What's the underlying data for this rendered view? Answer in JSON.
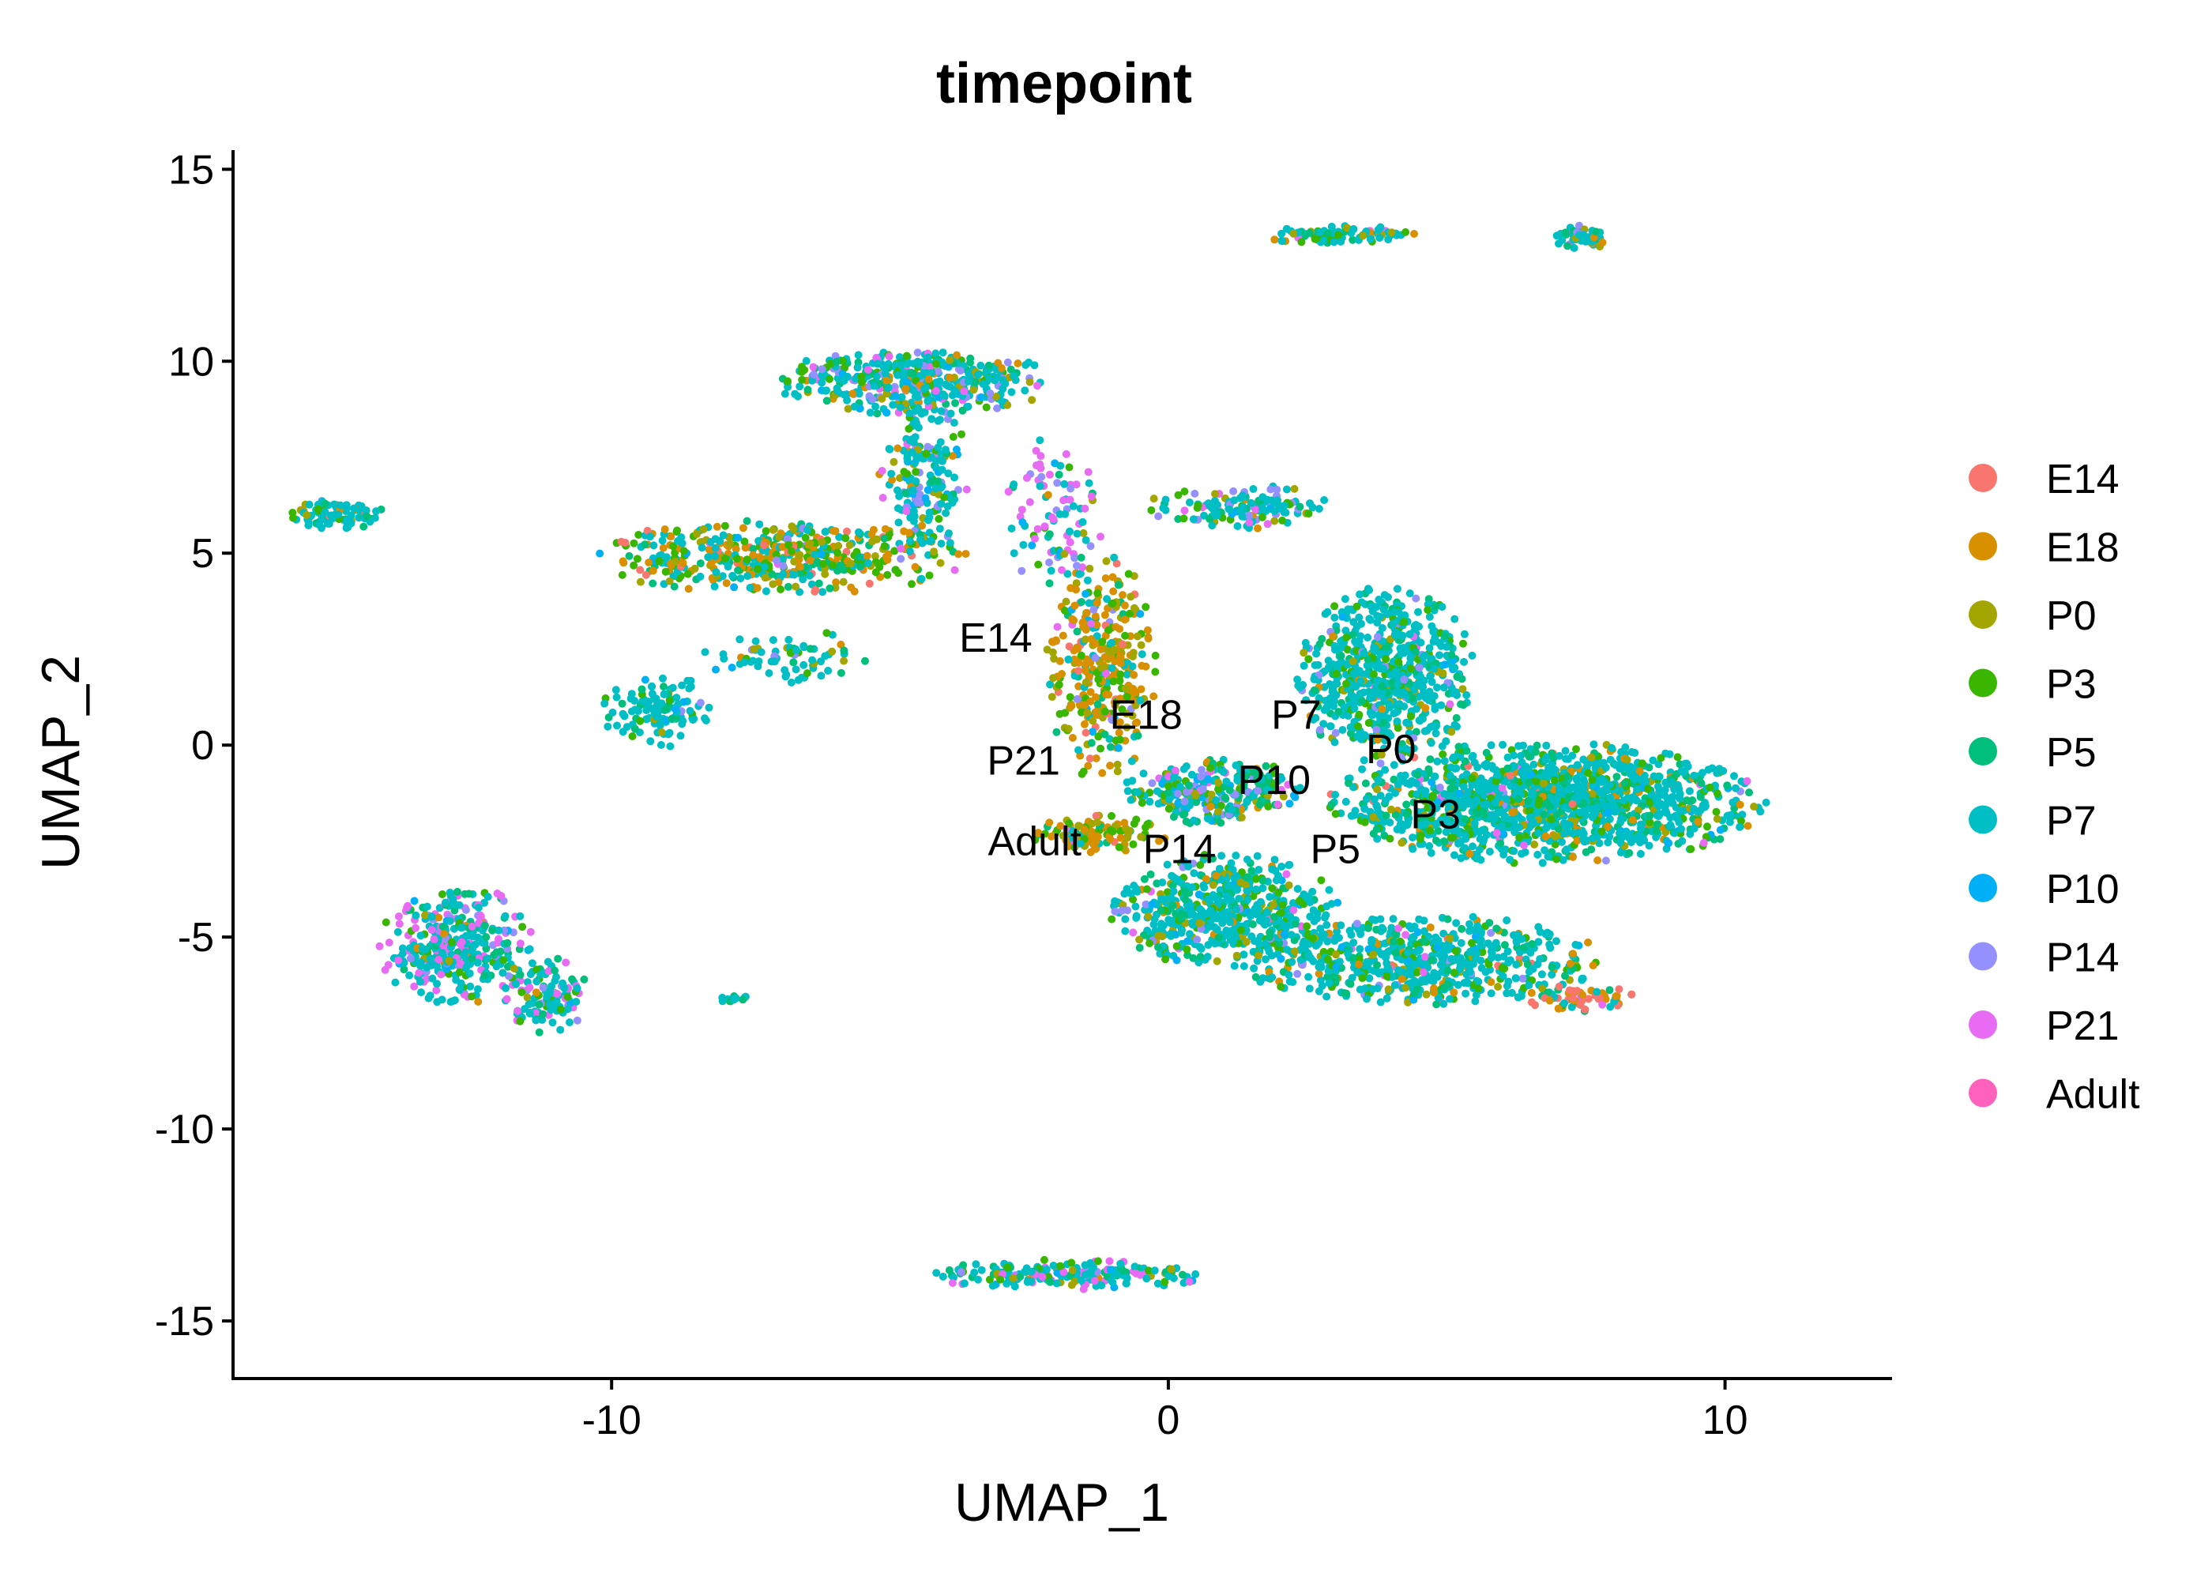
{
  "chart_data": {
    "type": "scatter",
    "title": "timepoint",
    "xlabel": "UMAP_1",
    "ylabel": "UMAP_2",
    "xlim": [
      -16.8,
      13
    ],
    "ylim": [
      -16.5,
      15.5
    ],
    "xticks": [
      -10,
      0,
      10
    ],
    "xtick_labels": [
      "-10",
      "0",
      "10"
    ],
    "yticks": [
      -15,
      -10,
      -5,
      0,
      5,
      10,
      15
    ],
    "ytick_labels": [
      "-15",
      "-10",
      "-5",
      "0",
      "5",
      "10",
      "15"
    ],
    "grid": false,
    "legend_position": "right",
    "series": [
      {
        "name": "E14",
        "color": "#F8766D"
      },
      {
        "name": "E18",
        "color": "#D89000"
      },
      {
        "name": "P0",
        "color": "#A3A500"
      },
      {
        "name": "P3",
        "color": "#39B600"
      },
      {
        "name": "P5",
        "color": "#00BF7D"
      },
      {
        "name": "P7",
        "color": "#00BFC4"
      },
      {
        "name": "P10",
        "color": "#00B0F6"
      },
      {
        "name": "P14",
        "color": "#9590FF"
      },
      {
        "name": "P21",
        "color": "#E76BF3"
      },
      {
        "name": "Adult",
        "color": "#FF62BC"
      }
    ],
    "cluster_labels": [
      {
        "text": "E14",
        "x": -3.1,
        "y": 2.8
      },
      {
        "text": "E18",
        "x": -0.4,
        "y": 0.8
      },
      {
        "text": "P7",
        "x": 2.3,
        "y": 0.8
      },
      {
        "text": "P0",
        "x": 4.0,
        "y": -0.1
      },
      {
        "text": "P21",
        "x": -2.6,
        "y": -0.4
      },
      {
        "text": "P10",
        "x": 1.9,
        "y": -0.9
      },
      {
        "text": "P3",
        "x": 4.8,
        "y": -1.8
      },
      {
        "text": "Adult",
        "x": -2.4,
        "y": -2.5
      },
      {
        "text": "P14",
        "x": 0.2,
        "y": -2.7
      },
      {
        "text": "P5",
        "x": 3.0,
        "y": -2.7
      }
    ],
    "clusters": [
      {
        "cx": -14.9,
        "cy": 6.0,
        "rx": 0.9,
        "ry": 0.4,
        "w": 0.4,
        "mix": [
          0.05,
          0.05,
          0.05,
          0.1,
          0.15,
          0.5,
          0.05,
          0.05,
          0.0,
          0.0
        ]
      },
      {
        "cx": -7.0,
        "cy": 4.9,
        "rx": 3.4,
        "ry": 1.0,
        "w": 2.0,
        "mix": [
          0.05,
          0.25,
          0.1,
          0.2,
          0.1,
          0.25,
          0.02,
          0.02,
          0.01,
          0.0
        ]
      },
      {
        "cx": -4.5,
        "cy": 9.5,
        "rx": 2.6,
        "ry": 0.9,
        "w": 1.8,
        "mix": [
          0.0,
          0.05,
          0.05,
          0.1,
          0.1,
          0.5,
          0.05,
          0.1,
          0.05,
          0.0
        ]
      },
      {
        "cx": -4.4,
        "cy": 7.0,
        "rx": 0.8,
        "ry": 2.2,
        "w": 0.8,
        "mix": [
          0.0,
          0.03,
          0.03,
          0.08,
          0.08,
          0.6,
          0.05,
          0.08,
          0.05,
          0.0
        ]
      },
      {
        "cx": -2.1,
        "cy": 6.0,
        "rx": 1.0,
        "ry": 2.0,
        "w": 0.4,
        "mix": [
          0.0,
          0.02,
          0.02,
          0.05,
          0.05,
          0.3,
          0.05,
          0.15,
          0.36,
          0.0
        ]
      },
      {
        "cx": -9.2,
        "cy": 0.9,
        "rx": 1.0,
        "ry": 1.0,
        "w": 0.5,
        "mix": [
          0.0,
          0.02,
          0.02,
          0.05,
          0.1,
          0.75,
          0.04,
          0.02,
          0.0,
          0.0
        ]
      },
      {
        "cx": -6.8,
        "cy": 2.3,
        "rx": 1.6,
        "ry": 0.7,
        "w": 0.3,
        "mix": [
          0.0,
          0.05,
          0.05,
          0.1,
          0.1,
          0.6,
          0.05,
          0.05,
          0.0,
          0.0
        ]
      },
      {
        "cx": -1.2,
        "cy": 2.0,
        "rx": 1.0,
        "ry": 3.0,
        "w": 1.5,
        "mix": [
          0.05,
          0.4,
          0.2,
          0.15,
          0.05,
          0.1,
          0.02,
          0.02,
          0.01,
          0.0
        ]
      },
      {
        "cx": 1.3,
        "cy": 6.2,
        "rx": 1.7,
        "ry": 0.6,
        "w": 0.6,
        "mix": [
          0.0,
          0.05,
          0.05,
          0.1,
          0.1,
          0.5,
          0.05,
          0.1,
          0.05,
          0.0
        ]
      },
      {
        "cx": -1.3,
        "cy": -2.3,
        "rx": 1.4,
        "ry": 0.5,
        "w": 0.5,
        "mix": [
          0.02,
          0.4,
          0.2,
          0.2,
          0.05,
          0.1,
          0.01,
          0.01,
          0.01,
          0.0
        ]
      },
      {
        "cx": 0.8,
        "cy": -1.2,
        "rx": 1.6,
        "ry": 0.9,
        "w": 1.2,
        "mix": [
          0.0,
          0.05,
          0.05,
          0.1,
          0.2,
          0.35,
          0.1,
          0.1,
          0.05,
          0.0
        ]
      },
      {
        "cx": 3.9,
        "cy": 1.8,
        "rx": 1.6,
        "ry": 2.4,
        "w": 3.0,
        "mix": [
          0.0,
          0.02,
          0.05,
          0.1,
          0.15,
          0.62,
          0.02,
          0.03,
          0.01,
          0.0
        ]
      },
      {
        "cx": 6.8,
        "cy": -1.5,
        "rx": 4.0,
        "ry": 1.6,
        "w": 6.0,
        "mix": [
          0.01,
          0.03,
          0.05,
          0.12,
          0.15,
          0.6,
          0.02,
          0.01,
          0.01,
          0.0
        ]
      },
      {
        "cx": 1.0,
        "cy": -4.3,
        "rx": 2.1,
        "ry": 1.5,
        "w": 2.4,
        "mix": [
          0.0,
          0.03,
          0.05,
          0.12,
          0.15,
          0.55,
          0.04,
          0.04,
          0.02,
          0.0
        ]
      },
      {
        "cx": 4.5,
        "cy": -5.6,
        "rx": 3.3,
        "ry": 1.2,
        "w": 2.6,
        "mix": [
          0.01,
          0.04,
          0.05,
          0.12,
          0.15,
          0.58,
          0.02,
          0.02,
          0.01,
          0.0
        ]
      },
      {
        "cx": 7.3,
        "cy": -6.6,
        "rx": 1.1,
        "ry": 0.4,
        "w": 0.3,
        "mix": [
          0.3,
          0.3,
          0.05,
          0.05,
          0.1,
          0.15,
          0.0,
          0.0,
          0.05,
          0.0
        ]
      },
      {
        "cx": -12.8,
        "cy": -5.2,
        "rx": 1.4,
        "ry": 1.6,
        "w": 1.5,
        "mix": [
          0.0,
          0.02,
          0.02,
          0.06,
          0.1,
          0.5,
          0.02,
          0.08,
          0.2,
          0.0
        ]
      },
      {
        "cx": -11.2,
        "cy": -6.5,
        "rx": 0.8,
        "ry": 1.0,
        "w": 0.5,
        "mix": [
          0.0,
          0.02,
          0.02,
          0.06,
          0.1,
          0.5,
          0.02,
          0.08,
          0.2,
          0.0
        ]
      },
      {
        "cx": 3.0,
        "cy": 13.3,
        "rx": 1.5,
        "ry": 0.25,
        "w": 0.4,
        "mix": [
          0.0,
          0.1,
          0.05,
          0.1,
          0.15,
          0.55,
          0.0,
          0.0,
          0.05,
          0.0
        ]
      },
      {
        "cx": 7.4,
        "cy": 13.2,
        "rx": 0.5,
        "ry": 0.35,
        "w": 0.2,
        "mix": [
          0.0,
          0.05,
          0.05,
          0.1,
          0.15,
          0.55,
          0.0,
          0.05,
          0.05,
          0.0
        ]
      },
      {
        "cx": -1.8,
        "cy": -13.8,
        "rx": 2.5,
        "ry": 0.4,
        "w": 0.9,
        "mix": [
          0.0,
          0.02,
          0.02,
          0.08,
          0.15,
          0.5,
          0.02,
          0.06,
          0.15,
          0.0
        ]
      },
      {
        "cx": -7.8,
        "cy": -6.6,
        "rx": 0.3,
        "ry": 0.1,
        "w": 0.03,
        "mix": [
          0.0,
          0.0,
          0.0,
          0.2,
          0.3,
          0.5,
          0.0,
          0.0,
          0.0,
          0.0
        ]
      }
    ]
  }
}
